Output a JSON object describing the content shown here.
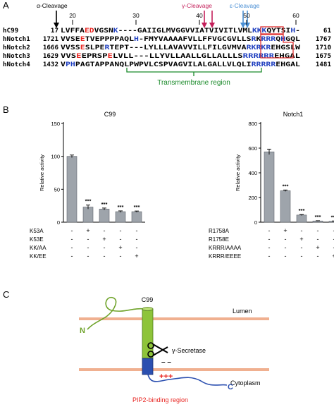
{
  "panel_a": {
    "label": "A",
    "cleavage": {
      "alpha": "α-Cleavage",
      "gamma": "γ-Cleavage",
      "epsilon": "ε-Cleavage"
    },
    "positions": [
      "20",
      "30",
      "40",
      "50",
      "60"
    ],
    "rows": [
      {
        "name": "hC99",
        "start": "17",
        "end": "61",
        "tokens": [
          {
            "t": "LVFFA",
            "c": "black"
          },
          {
            "t": "ED",
            "c": "red"
          },
          {
            "t": "VGSN",
            "c": "black"
          },
          {
            "t": "K",
            "c": "blue"
          },
          {
            "t": "----GAIIGLMVGGVVIATVIVITLVML",
            "c": "black"
          },
          {
            "t": "KKK",
            "c": "blue"
          },
          {
            "t": "QYTSI",
            "c": "black"
          },
          {
            "t": "H",
            "c": "blue"
          },
          {
            "t": "-",
            "c": "black"
          }
        ]
      },
      {
        "name": "hNotch1",
        "start": "1721",
        "end": "1767",
        "tokens": [
          {
            "t": "VVSE",
            "c": "black"
          },
          {
            "t": "E",
            "c": "red"
          },
          {
            "t": "TVEPPPPAQL",
            "c": "black"
          },
          {
            "t": "H",
            "c": "blue"
          },
          {
            "t": "-FMYVAAAAFVLLFFVGCGVLLS",
            "c": "black"
          },
          {
            "t": "R",
            "c": "blue"
          },
          {
            "t": "K",
            "c": "black"
          },
          {
            "t": "RRR",
            "c": "blue"
          },
          {
            "t": "Q",
            "c": "black"
          },
          {
            "t": "H",
            "c": "blue"
          },
          {
            "t": "GQL",
            "c": "black"
          }
        ]
      },
      {
        "name": "hNotch2",
        "start": "1666",
        "end": "1710",
        "tokens": [
          {
            "t": "VVSS",
            "c": "black"
          },
          {
            "t": "E",
            "c": "red"
          },
          {
            "t": "SLPE",
            "c": "black"
          },
          {
            "t": "R",
            "c": "blue"
          },
          {
            "t": "TEPT---LYLLLAVAVVILLFILGVMVA",
            "c": "black"
          },
          {
            "t": "RKRKR",
            "c": "blue"
          },
          {
            "t": "EH",
            "c": "black"
          },
          {
            "t": "G",
            "c": "black"
          },
          {
            "t": "SLW",
            "c": "black"
          }
        ]
      },
      {
        "name": "hNotch3",
        "start": "1629",
        "end": "1675",
        "tokens": [
          {
            "t": "VVS",
            "c": "black"
          },
          {
            "t": "E",
            "c": "red"
          },
          {
            "t": "EPRSP",
            "c": "black"
          },
          {
            "t": "E",
            "c": "red"
          },
          {
            "t": "LVLL---LLYVLLAALLGLLALLLS",
            "c": "black"
          },
          {
            "t": "RRRRRR",
            "c": "blue"
          },
          {
            "t": "EHGAL",
            "c": "black"
          }
        ]
      },
      {
        "name": "hNotch4",
        "start": "1432",
        "end": "1481",
        "tokens": [
          {
            "t": "V",
            "c": "black"
          },
          {
            "t": "PH",
            "c": "blue"
          },
          {
            "t": "PAGTAPPANQLPWPVLCSPVAGVILALGALLVLQLI",
            "c": "black"
          },
          {
            "t": "RRRRR",
            "c": "blue"
          },
          {
            "t": "EHGAL",
            "c": "black"
          }
        ]
      }
    ],
    "tm_label": "Transmembrane region"
  },
  "panel_b": {
    "label": "B",
    "charts": [
      {
        "title": "C99",
        "ylabel": "Relative activity",
        "yticks": [
          "0",
          "50",
          "100",
          "150"
        ],
        "ylim": [
          0,
          150
        ],
        "values": [
          100,
          23,
          20,
          16,
          16
        ],
        "errors": [
          2,
          3,
          1.5,
          1.2,
          1
        ],
        "sig": [
          "",
          "***",
          "***",
          "***",
          "***"
        ],
        "rows": [
          {
            "label": "K53A",
            "marks": [
              "-",
              "+",
              "-",
              "-",
              "-"
            ]
          },
          {
            "label": "K53E",
            "marks": [
              "-",
              "-",
              "+",
              "-",
              "-"
            ]
          },
          {
            "label": "KK/AA",
            "marks": [
              "-",
              "-",
              "-",
              "+",
              "-"
            ]
          },
          {
            "label": "KK/EE",
            "marks": [
              "-",
              "-",
              "-",
              "-",
              "+"
            ]
          }
        ]
      },
      {
        "title": "Notch1",
        "ylabel": "Relative activity",
        "yticks": [
          "0",
          "200",
          "400",
          "600",
          "800"
        ],
        "ylim": [
          0,
          800
        ],
        "values": [
          570,
          255,
          58,
          10,
          8
        ],
        "errors": [
          22,
          6,
          4,
          2,
          2
        ],
        "sig": [
          "",
          "***",
          "***",
          "***",
          "***"
        ],
        "rows": [
          {
            "label": "R1758A",
            "marks": [
              "-",
              "+",
              "-",
              "-",
              "-"
            ]
          },
          {
            "label": "R1758E",
            "marks": [
              "-",
              "-",
              "+",
              "-",
              "-"
            ]
          },
          {
            "label": "KRRR/AAAA",
            "marks": [
              "-",
              "-",
              "-",
              "+",
              "-"
            ]
          },
          {
            "label": "KRRR/EEEE",
            "marks": [
              "-",
              "-",
              "-",
              "-",
              "+"
            ]
          }
        ]
      }
    ]
  },
  "panel_c": {
    "label": "C",
    "c99": "C99",
    "lumen": "Lumen",
    "secretase": "γ-Secretase",
    "cytoplasm": "Cytoplasm",
    "n_term": "N",
    "c_term": "C",
    "minus": "– –",
    "plus": "+++",
    "pip2": "PIP2-binding region"
  },
  "chart_data": [
    {
      "type": "bar",
      "title": "C99",
      "categories": [
        "1",
        "2",
        "3",
        "4",
        "5"
      ],
      "values": [
        100,
        23,
        20,
        16,
        16
      ],
      "errors": [
        2,
        3,
        1.5,
        1.2,
        1
      ],
      "ylabel": "Relative activity",
      "ylim": [
        0,
        150
      ]
    },
    {
      "type": "bar",
      "title": "Notch1",
      "categories": [
        "1",
        "2",
        "3",
        "4",
        "5"
      ],
      "values": [
        570,
        255,
        58,
        10,
        8
      ],
      "errors": [
        22,
        6,
        4,
        2,
        2
      ],
      "ylabel": "Relative activity",
      "ylim": [
        0,
        800
      ]
    }
  ],
  "colors": {
    "red": "#e8231f",
    "blue": "#1f3fbf",
    "alpha_arrow": "#000000",
    "gamma_arrow": "#c41f5a",
    "epsilon_arrow": "#4a8fd4",
    "tm_bracket": "#1a8a2a",
    "bar": "#9ea4ab",
    "membrane": "#f0b090",
    "helix_green": "#8ec43a",
    "helix_blue": "#2b4fb0",
    "n_tail": "#6fa32a",
    "c_tail": "#2b4fb0",
    "box": "#e03030"
  }
}
